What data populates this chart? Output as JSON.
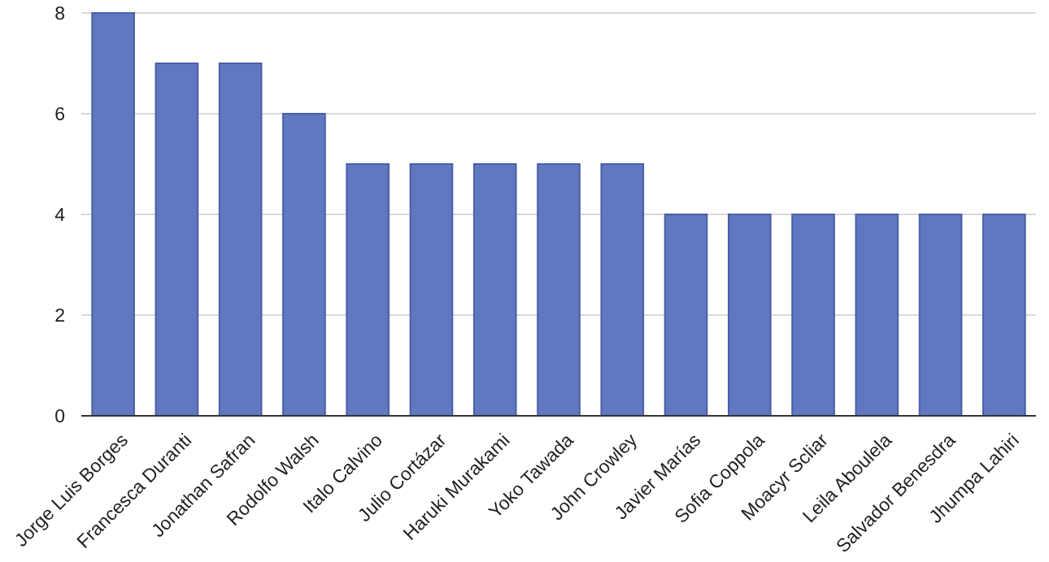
{
  "chart_data": {
    "type": "bar",
    "categories": [
      "Jorge Luis Borges",
      "Francesca Duranti",
      "Jonathan Safran",
      "Rodolfo Walsh",
      "Italo Calvino",
      "Julio Cortázar",
      "Haruki Murakami",
      "Yoko Tawada",
      "John Crowley",
      "Javier Marías",
      "Sofia Coppola",
      "Moacyr Scliar",
      "Leila Aboulela",
      "Salvador Benesdra",
      "Jhumpa Lahiri"
    ],
    "values": [
      8,
      7,
      7,
      6,
      5,
      5,
      5,
      5,
      5,
      4,
      4,
      4,
      4,
      4,
      4
    ],
    "color": "#6078bf",
    "ylim": [
      0,
      8
    ],
    "yticks": [
      0,
      2,
      4,
      6,
      8
    ],
    "grid": "y"
  }
}
